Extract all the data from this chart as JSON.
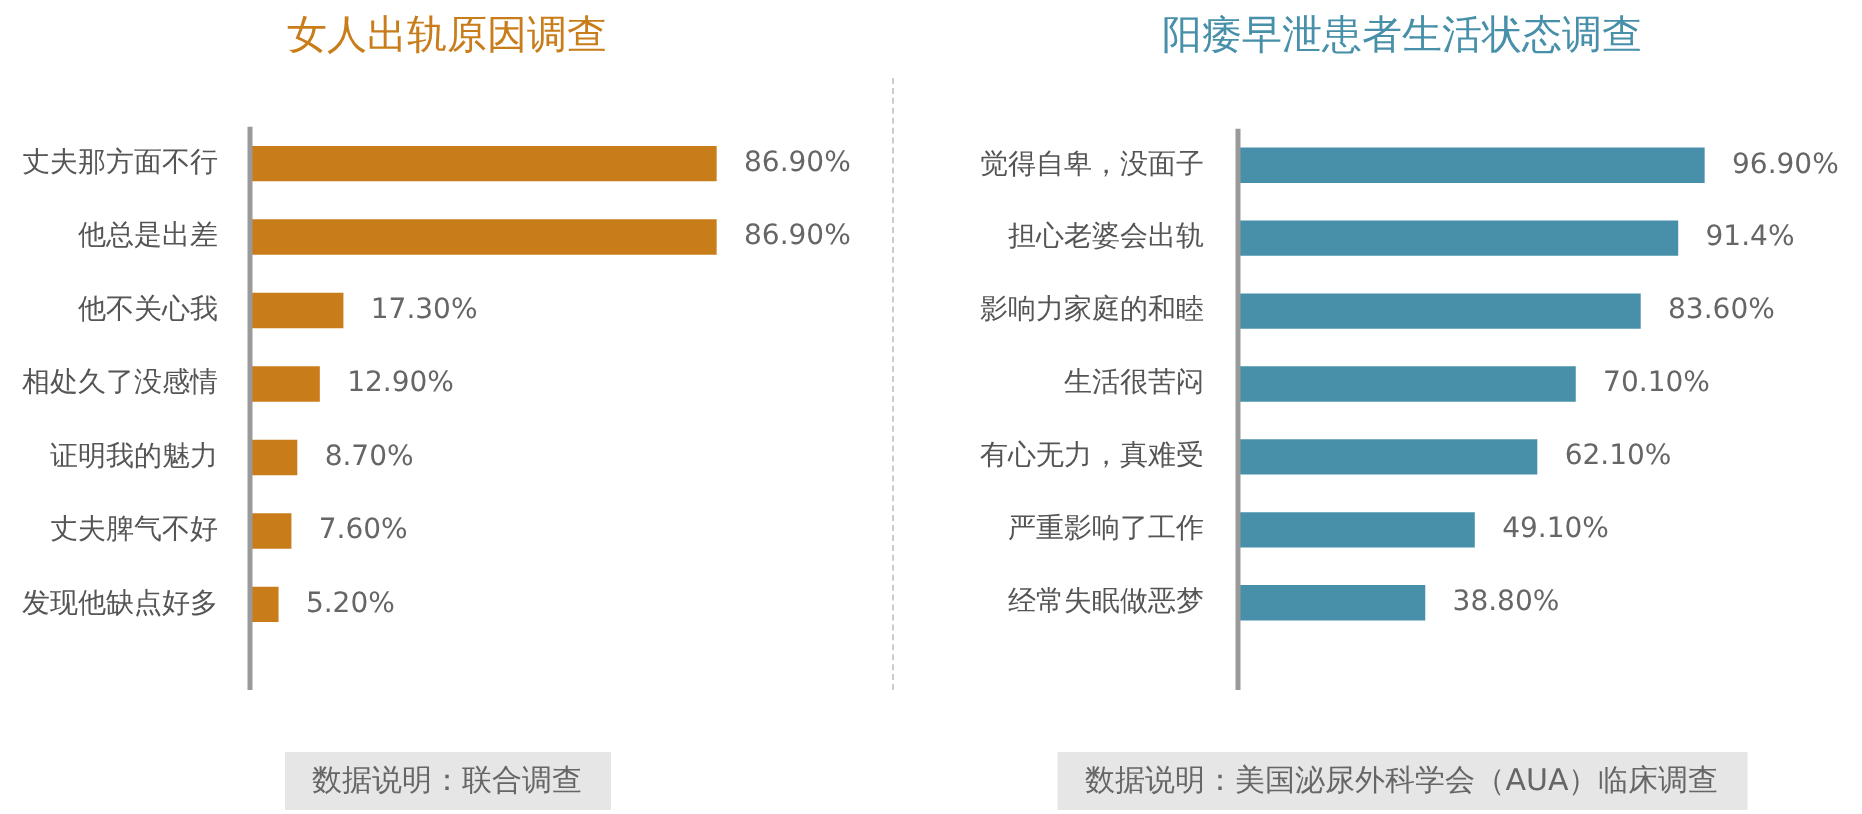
{
  "chart_data": [
    {
      "type": "bar",
      "orientation": "horizontal",
      "title": "女人出轨原因调查",
      "categories": [
        "丈夫那方面不行",
        "他总是出差",
        "他不关心我",
        "相处久了没感情",
        "证明我的魅力",
        "丈夫脾气不好",
        "发现他缺点好多"
      ],
      "values": [
        86.9,
        86.9,
        17.3,
        12.9,
        8.7,
        7.6,
        5.2
      ],
      "value_labels": [
        "86.90%",
        "86.90%",
        "17.30%",
        "12.90%",
        "8.70%",
        "7.60%",
        "5.20%"
      ],
      "color": "#c97d1a",
      "tick_labels": "y",
      "annotations": [
        "数据说明：联合调查"
      ]
    },
    {
      "type": "bar",
      "orientation": "horizontal",
      "title": "阳痿早泄患者生活状态调查",
      "categories": [
        "觉得自卑，没面子",
        "担心老婆会出轨",
        "影响力家庭的和睦",
        "生活很苦闷",
        "有心无力，真难受",
        "严重影响了工作",
        "经常失眠做恶梦"
      ],
      "values": [
        96.9,
        91.4,
        83.6,
        70.1,
        62.1,
        49.1,
        38.8
      ],
      "value_labels": [
        "96.90%",
        "91.4%",
        "83.60%",
        "70.10%",
        "62.10%",
        "49.10%",
        "38.80%"
      ],
      "color": "#4890aa",
      "tick_labels": "y",
      "annotations": [
        "数据说明：美国泌尿外科学会（AUA）临床调查"
      ]
    }
  ]
}
